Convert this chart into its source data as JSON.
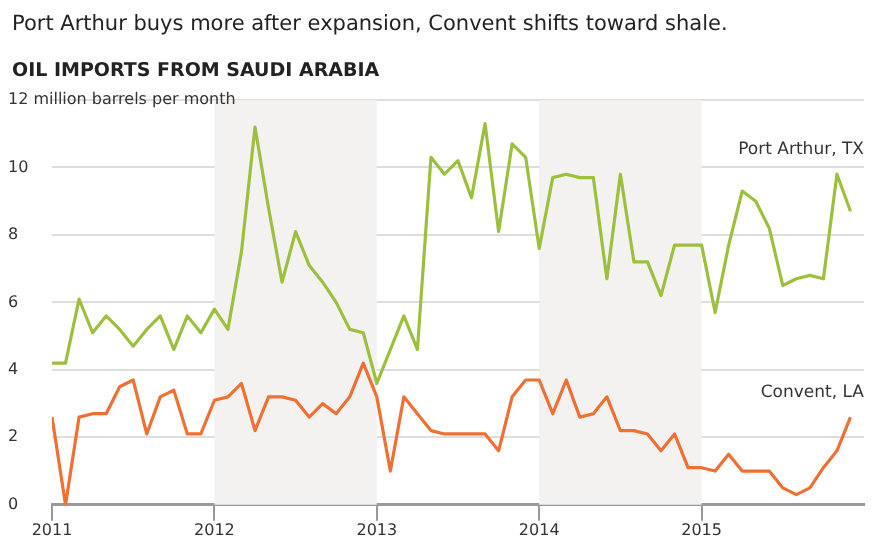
{
  "chart_data": {
    "type": "line",
    "subtitle": "Port Arthur buys more after expansion, Convent shifts toward shale.",
    "title": "OIL IMPORTS FROM SAUDI ARABIA",
    "x": [
      "2011-01",
      "2011-02",
      "2011-03",
      "2011-04",
      "2011-05",
      "2011-06",
      "2011-07",
      "2011-08",
      "2011-09",
      "2011-10",
      "2011-11",
      "2011-12",
      "2012-01",
      "2012-02",
      "2012-03",
      "2012-04",
      "2012-05",
      "2012-06",
      "2012-07",
      "2012-08",
      "2012-09",
      "2012-10",
      "2012-11",
      "2012-12",
      "2013-01",
      "2013-02",
      "2013-03",
      "2013-04",
      "2013-05",
      "2013-06",
      "2013-07",
      "2013-08",
      "2013-09",
      "2013-10",
      "2013-11",
      "2013-12",
      "2014-01",
      "2014-02",
      "2014-03",
      "2014-04",
      "2014-05",
      "2014-06",
      "2014-07",
      "2014-08",
      "2014-09",
      "2014-10",
      "2014-11",
      "2014-12",
      "2015-01",
      "2015-02",
      "2015-03",
      "2015-04",
      "2015-05",
      "2015-06",
      "2015-07",
      "2015-08",
      "2015-09",
      "2015-10",
      "2015-11",
      "2015-12"
    ],
    "series": [
      {
        "name": "Port Arthur, TX",
        "color": "#9dbf3e",
        "values": [
          4.2,
          4.2,
          6.1,
          5.1,
          5.6,
          5.2,
          4.7,
          5.2,
          5.6,
          4.6,
          5.6,
          5.1,
          5.8,
          5.2,
          7.5,
          11.2,
          8.8,
          6.6,
          8.1,
          7.1,
          6.6,
          6.0,
          5.2,
          5.1,
          3.6,
          4.6,
          5.6,
          4.6,
          10.3,
          9.8,
          10.2,
          9.1,
          11.3,
          8.1,
          10.7,
          10.3,
          7.6,
          9.7,
          9.8,
          9.7,
          9.7,
          6.7,
          9.8,
          7.2,
          7.2,
          6.2,
          7.7,
          7.7,
          7.7,
          5.7,
          7.7,
          9.3,
          9.0,
          8.2,
          6.5,
          6.7,
          6.8,
          6.7,
          9.8,
          8.7
        ]
      },
      {
        "name": "Convent, LA",
        "color": "#f07034",
        "values": [
          2.6,
          0.0,
          2.6,
          2.7,
          2.7,
          3.5,
          3.7,
          2.1,
          3.2,
          3.4,
          2.1,
          2.1,
          3.1,
          3.2,
          3.6,
          2.2,
          3.2,
          3.2,
          3.1,
          2.6,
          3.0,
          2.7,
          3.2,
          4.2,
          3.2,
          1.0,
          3.2,
          2.7,
          2.2,
          2.1,
          2.1,
          2.1,
          2.1,
          1.6,
          3.2,
          3.7,
          3.7,
          2.7,
          3.7,
          2.6,
          2.7,
          3.2,
          2.2,
          2.2,
          2.1,
          1.6,
          2.1,
          1.1,
          1.1,
          1.0,
          1.5,
          1.0,
          1.0,
          1.0,
          0.5,
          0.3,
          0.5,
          1.1,
          1.6,
          2.6
        ]
      }
    ],
    "xlim": [
      "2011-01",
      "2016-01"
    ],
    "xticks": [
      "2011",
      "2012",
      "2013",
      "2014",
      "2015"
    ],
    "ylim": [
      0,
      12
    ],
    "yticks": [
      0,
      2,
      4,
      6,
      8,
      10,
      {
        "value": 12,
        "label": "12 million barrels per month"
      }
    ],
    "bands": [
      {
        "axis": "x",
        "from": "2012",
        "to": "2013",
        "color": "#f3f2f0"
      },
      {
        "axis": "x",
        "from": "2014",
        "to": "2015",
        "color": "#f3f2f0"
      }
    ],
    "grid": "y",
    "legend": false,
    "marker": "none",
    "line_style": "solid"
  }
}
